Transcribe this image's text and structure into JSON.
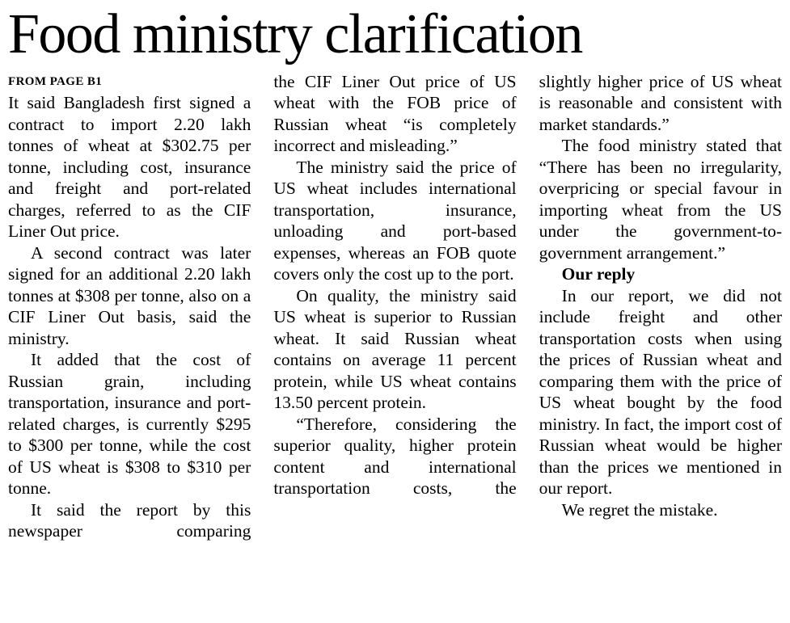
{
  "article": {
    "headline": "Food ministry clarification",
    "kicker": "FROM PAGE B1",
    "columns": [
      {
        "paragraphs": [
          {
            "text": "It said Bangladesh first signed a contract to import 2.20 lakh tonnes of wheat at $302.75 per tonne, including cost, insurance and freight and port-related charges, referred to as the CIF Liner Out price."
          },
          {
            "text": "A second contract was later signed for an additional 2.20 lakh tonnes at $308 per tonne, also on a CIF Liner Out basis, said the ministry."
          },
          {
            "text": "It added that the cost of Russian grain, including transportation, insurance and port-related charges, is currently $295 to $300 per tonne, while the cost of US wheat is $308 to $310 per tonne."
          },
          {
            "text": "It said the report by this newspaper comparing"
          }
        ]
      },
      {
        "paragraphs": [
          {
            "text": "the CIF Liner Out price of US wheat with the FOB price of Russian wheat “is completely incorrect and misleading.”"
          },
          {
            "text": "The ministry said the price of US wheat includes international transportation, insurance, unloading and port-based expenses, whereas an FOB quote covers only the cost up to the port."
          },
          {
            "text": "On quality, the ministry said US wheat is superior to Russian wheat. It said Russian wheat contains on average 11 percent protein, while US wheat contains 13.50 percent protein."
          },
          {
            "text": "“Therefore, considering the superior quality, higher protein content and international transportation costs, the"
          }
        ]
      },
      {
        "paragraphs": [
          {
            "text": "slightly higher price of US wheat is reasonable and consistent with market standards.”"
          },
          {
            "text": "The food ministry stated that “There has been no irregularity, overpricing or special favour in importing wheat from the US under the government-to-government arrangement.”"
          },
          {
            "text": "Our reply"
          },
          {
            "text": "In our report, we did not include freight and other transportation costs when using the prices of Russian wheat and comparing them with the price of US wheat bought by the food ministry. In fact, the import cost of Russian wheat would be higher than the prices we mentioned in our report."
          },
          {
            "text": "We regret the mistake."
          }
        ]
      }
    ]
  }
}
